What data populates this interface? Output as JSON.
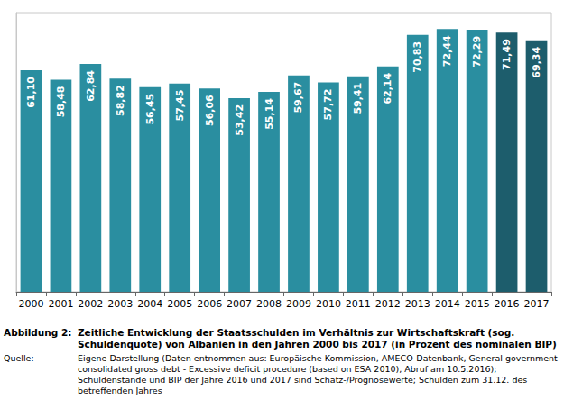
{
  "chart_data": {
    "type": "bar",
    "categories": [
      "2000",
      "2001",
      "2002",
      "2003",
      "2004",
      "2005",
      "2006",
      "2007",
      "2008",
      "2009",
      "2010",
      "2011",
      "2012",
      "2013",
      "2014",
      "2015",
      "2016",
      "2017"
    ],
    "values": [
      61.1,
      58.48,
      62.84,
      58.82,
      56.45,
      57.45,
      56.06,
      53.42,
      55.14,
      59.67,
      57.72,
      59.41,
      62.14,
      70.83,
      72.44,
      72.29,
      71.49,
      69.34
    ],
    "value_labels": [
      "61,10",
      "58,48",
      "62,84",
      "58,82",
      "56,45",
      "57,45",
      "56,06",
      "53,42",
      "55,14",
      "59,67",
      "57,72",
      "59,41",
      "62,14",
      "70,83",
      "72,44",
      "72,29",
      "71,49",
      "69,34"
    ],
    "colors": [
      "#2a8ea0",
      "#2a8ea0",
      "#2a8ea0",
      "#2a8ea0",
      "#2a8ea0",
      "#2a8ea0",
      "#2a8ea0",
      "#2a8ea0",
      "#2a8ea0",
      "#2a8ea0",
      "#2a8ea0",
      "#2a8ea0",
      "#2a8ea0",
      "#2a8ea0",
      "#2a8ea0",
      "#2a8ea0",
      "#1d5d6c",
      "#1d5d6c"
    ],
    "ylim": [
      0,
      77
    ],
    "grid": false,
    "data_labels": true,
    "tick_labels": "x"
  },
  "caption": {
    "label": "Abbildung 2:",
    "text": "Zeitliche Entwicklung der Staatsschulden im Verhältnis zur Wirtschaftskraft (sog. Schuldenquote) von Albanien in den Jahren 2000 bis 2017 (in Prozent des nominalen BIP)"
  },
  "source": {
    "label": "Quelle:",
    "text": "Eigene Darstellung (Daten entnommen aus: Europäische Kommission, AMECO-Datenbank, General government consolidated gross debt - Excessive deficit procedure (based on ESA 2010), Abruf am 10.5.2016); Schuldenstände und BIP der Jahre 2016 und 2017 sind Schätz-/Prognosewerte; Schulden zum 31.12. des betreffenden Jahres"
  }
}
